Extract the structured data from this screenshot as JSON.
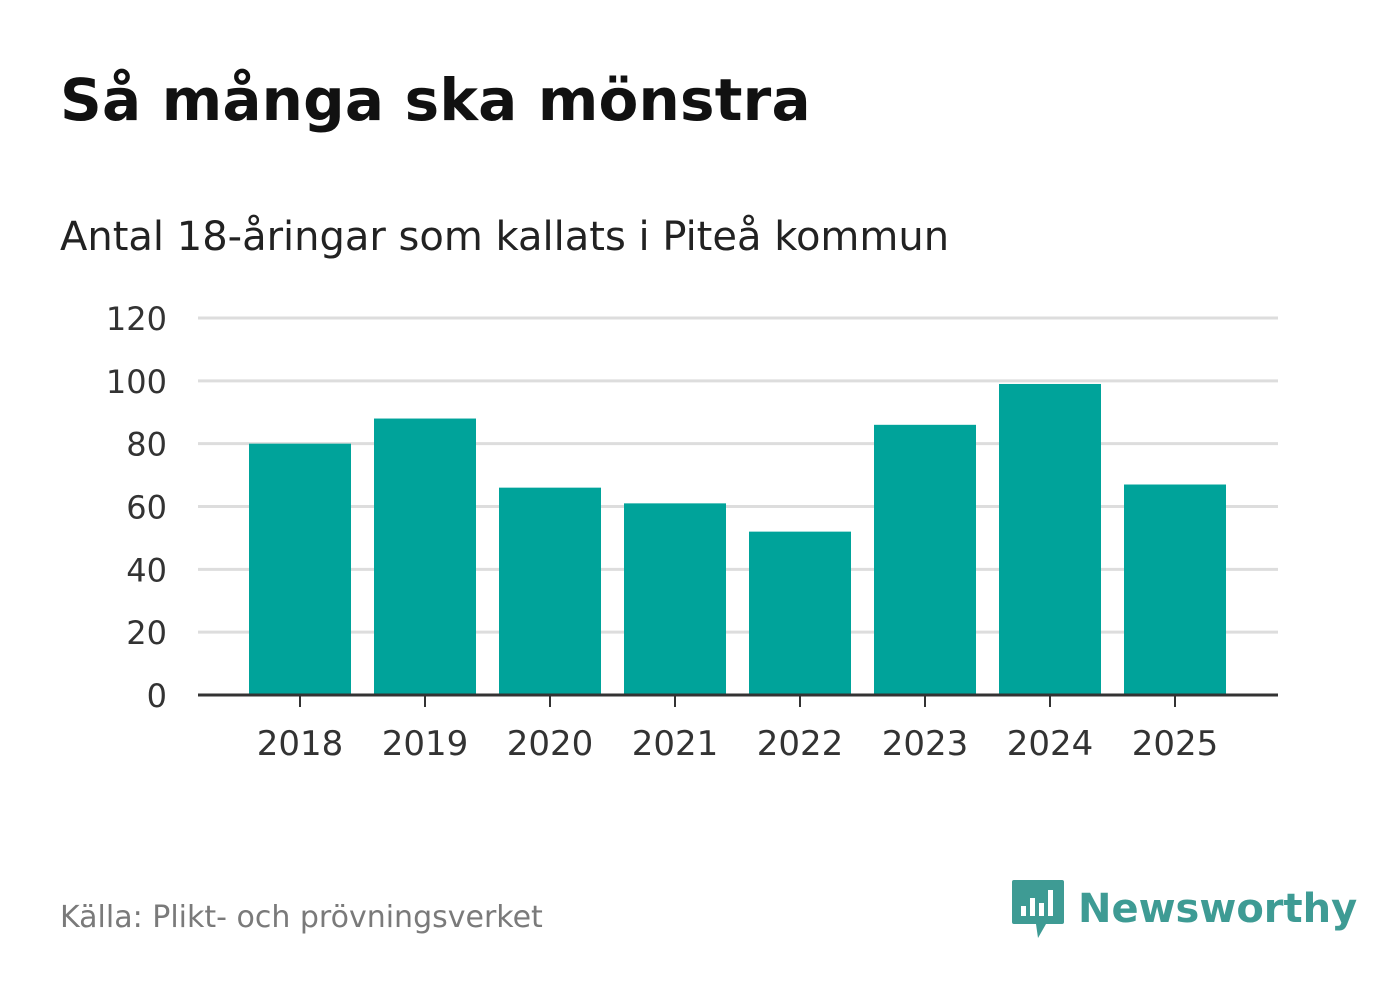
{
  "header": {
    "title": "Så många ska mönstra",
    "subtitle": "Antal 18-åringar som kallats i Piteå kommun"
  },
  "footer": {
    "source": "Källa: Plikt- och prövningsverket",
    "logo_text": "Newsworthy",
    "logo_icon": "bar-chart-speech-bubble-icon"
  },
  "colors": {
    "bar": "#00a39a",
    "grid": "#dddddd",
    "axis": "#333333",
    "logo": "#3e9b94"
  },
  "chart_data": {
    "type": "bar",
    "title": "Så många ska mönstra",
    "subtitle": "Antal 18-åringar som kallats i Piteå kommun",
    "categories": [
      "2018",
      "2019",
      "2020",
      "2021",
      "2022",
      "2023",
      "2024",
      "2025"
    ],
    "values": [
      80,
      88,
      66,
      61,
      52,
      86,
      99,
      67
    ],
    "ylim": [
      0,
      120
    ],
    "yticks": [
      "0",
      "20",
      "40",
      "60",
      "80",
      "100",
      "120"
    ],
    "grid": true,
    "legend": "none"
  }
}
